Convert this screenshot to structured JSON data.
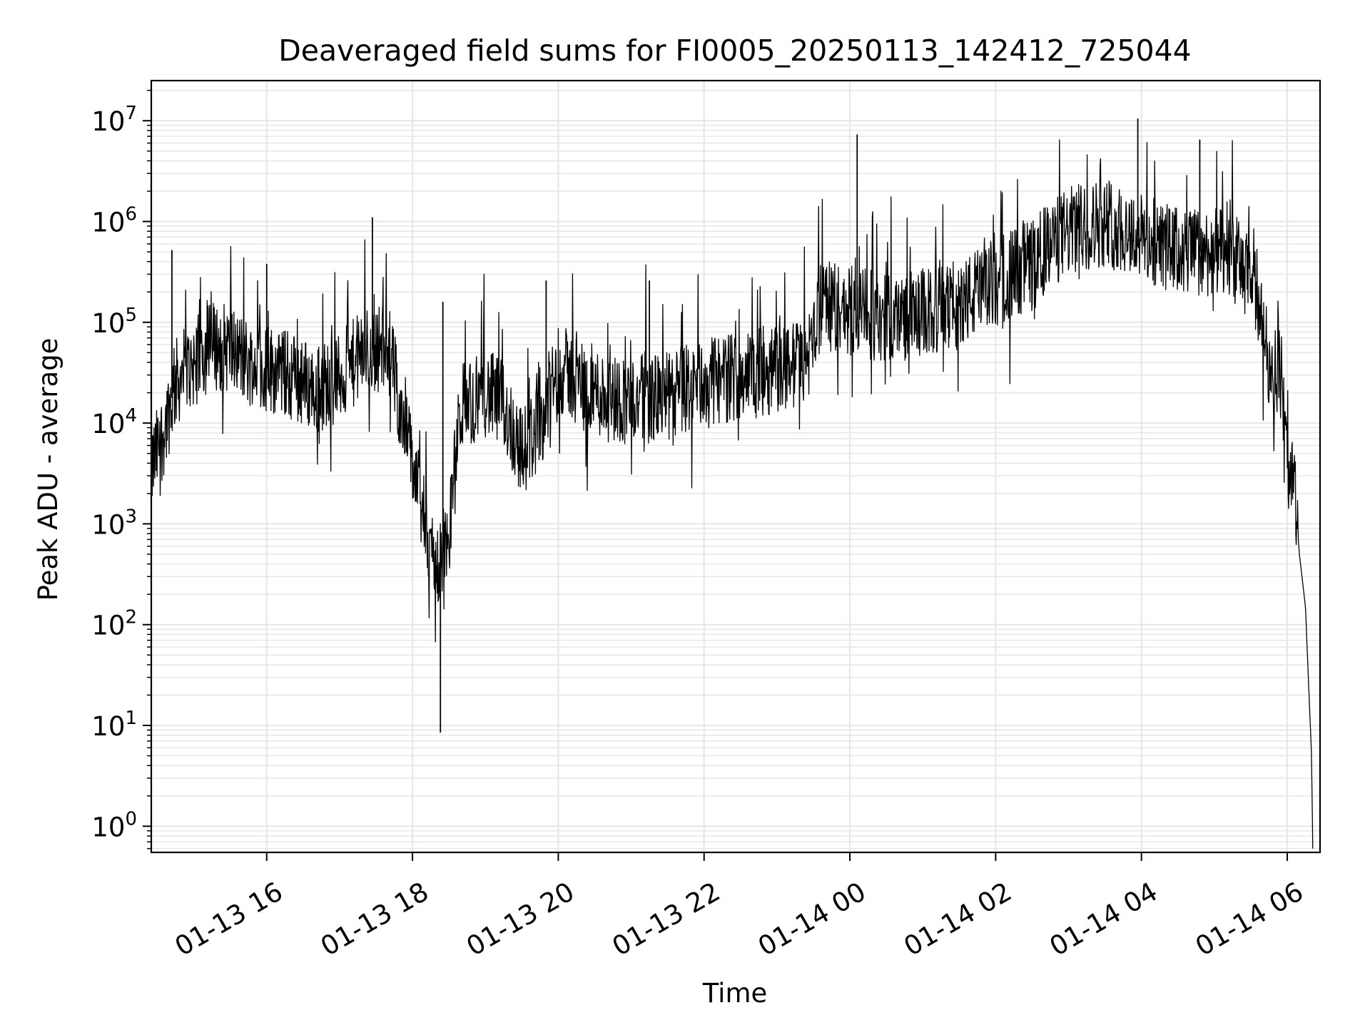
{
  "chart_data": {
    "type": "line",
    "title": "Deaveraged field sums for FI0005_20250113_142412_725044",
    "xlabel": "Time",
    "ylabel": "Peak ADU - average",
    "yscale": "log",
    "ylim": [
      0.55,
      25000000
    ],
    "xlim": [
      "2025-01-13 14:25",
      "2025-01-14 06:27"
    ],
    "grid": true,
    "line_color": "#000000",
    "grid_color": "#e6e6e6",
    "x_ticks": [
      {
        "label": "01-13 16",
        "time": "2025-01-13 16:00"
      },
      {
        "label": "01-13 18",
        "time": "2025-01-13 18:00"
      },
      {
        "label": "01-13 20",
        "time": "2025-01-13 20:00"
      },
      {
        "label": "01-13 22",
        "time": "2025-01-13 22:00"
      },
      {
        "label": "01-14 00",
        "time": "2025-01-14 00:00"
      },
      {
        "label": "01-14 02",
        "time": "2025-01-14 02:00"
      },
      {
        "label": "01-14 04",
        "time": "2025-01-14 04:00"
      },
      {
        "label": "01-14 06",
        "time": "2025-01-14 06:00"
      }
    ],
    "y_ticks": [
      {
        "base": "10",
        "exp": "0",
        "value": 1
      },
      {
        "base": "10",
        "exp": "1",
        "value": 10
      },
      {
        "base": "10",
        "exp": "2",
        "value": 100
      },
      {
        "base": "10",
        "exp": "3",
        "value": 1000
      },
      {
        "base": "10",
        "exp": "4",
        "value": 10000
      },
      {
        "base": "10",
        "exp": "5",
        "value": 100000
      },
      {
        "base": "10",
        "exp": "6",
        "value": 1000000
      },
      {
        "base": "10",
        "exp": "7",
        "value": 10000000
      }
    ],
    "series": [
      {
        "values": [
          [
            "2025-01-13 14:25",
            3500
          ],
          [
            "2025-01-13 14:35",
            8000
          ],
          [
            "2025-01-13 14:45",
            25000
          ],
          [
            "2025-01-13 15:00",
            40000
          ],
          [
            "2025-01-13 15:15",
            60000
          ],
          [
            "2025-01-13 15:30",
            55000
          ],
          [
            "2025-01-13 15:45",
            40000
          ],
          [
            "2025-01-13 16:00",
            35000
          ],
          [
            "2025-01-13 16:20",
            30000
          ],
          [
            "2025-01-13 16:40",
            22000
          ],
          [
            "2025-01-13 17:00",
            28000
          ],
          [
            "2025-01-13 17:20",
            50000
          ],
          [
            "2025-01-13 17:40",
            60000
          ],
          [
            "2025-01-13 17:50",
            15000
          ],
          [
            "2025-01-13 18:00",
            4000
          ],
          [
            "2025-01-13 18:10",
            1000
          ],
          [
            "2025-01-13 18:20",
            350
          ],
          [
            "2025-01-13 18:30",
            800
          ],
          [
            "2025-01-13 18:40",
            15000
          ],
          [
            "2025-01-13 19:00",
            20000
          ],
          [
            "2025-01-13 19:15",
            15000
          ],
          [
            "2025-01-13 19:30",
            5000
          ],
          [
            "2025-01-13 19:45",
            10000
          ],
          [
            "2025-01-13 20:00",
            35000
          ],
          [
            "2025-01-13 20:20",
            25000
          ],
          [
            "2025-01-13 20:40",
            18000
          ],
          [
            "2025-01-13 21:00",
            17000
          ],
          [
            "2025-01-13 21:30",
            18000
          ],
          [
            "2025-01-13 22:00",
            25000
          ],
          [
            "2025-01-13 22:30",
            30000
          ],
          [
            "2025-01-13 23:00",
            35000
          ],
          [
            "2025-01-13 23:25",
            40000
          ],
          [
            "2025-01-13 23:35",
            150000
          ],
          [
            "2025-01-14 00:00",
            130000
          ],
          [
            "2025-01-14 00:30",
            110000
          ],
          [
            "2025-01-14 01:00",
            120000
          ],
          [
            "2025-01-14 01:30",
            150000
          ],
          [
            "2025-01-14 02:00",
            250000
          ],
          [
            "2025-01-14 02:30",
            400000
          ],
          [
            "2025-01-14 03:00",
            800000
          ],
          [
            "2025-01-14 03:30",
            1000000
          ],
          [
            "2025-01-14 04:00",
            700000
          ],
          [
            "2025-01-14 04:30",
            500000
          ],
          [
            "2025-01-14 05:00",
            500000
          ],
          [
            "2025-01-14 05:20",
            400000
          ],
          [
            "2025-01-14 05:35",
            200000
          ],
          [
            "2025-01-14 05:45",
            40000
          ],
          [
            "2025-01-14 05:55",
            30000
          ],
          [
            "2025-01-14 06:00",
            4000
          ],
          [
            "2025-01-14 06:05",
            3000
          ],
          [
            "2025-01-14 06:10",
            500
          ],
          [
            "2025-01-14 06:15",
            150
          ],
          [
            "2025-01-14 06:20",
            5
          ],
          [
            "2025-01-14 06:21",
            0.6
          ]
        ],
        "spikes": [
          [
            "2025-01-13 14:42",
            520000
          ],
          [
            "2025-01-13 16:00",
            380000
          ],
          [
            "2025-01-13 17:27",
            1100000
          ],
          [
            "2025-01-13 18:23",
            8.5
          ],
          [
            "2025-01-13 18:25",
            160000
          ],
          [
            "2025-01-13 19:50",
            260000
          ],
          [
            "2025-01-13 21:15",
            260000
          ],
          [
            "2025-01-14 00:06",
            7300000
          ],
          [
            "2025-01-14 03:57",
            10500000
          ],
          [
            "2025-01-14 04:48",
            6500000
          ]
        ]
      }
    ]
  }
}
